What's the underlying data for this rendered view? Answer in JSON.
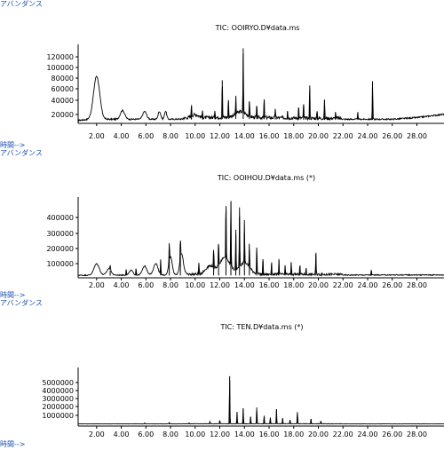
{
  "chart_data": [
    {
      "type": "line",
      "ylabel": "アバンダンス",
      "xlabel": "時間-->",
      "title": "TIC: OOIRYO.D¥data.ms",
      "y_ticks": [
        "120000",
        "100000",
        "80000",
        "60000",
        "40000",
        "20000"
      ],
      "ylim": [
        0,
        130000
      ],
      "xlim": [
        0.5,
        30.2
      ],
      "x_ticks": [
        "2.00",
        "4.00",
        "6.00",
        "8.00",
        "10.00",
        "12.00",
        "14.00",
        "16.00",
        "18.00",
        "20.00",
        "22.00",
        "24.00",
        "26.00",
        "28.00"
      ],
      "baseline": [
        [
          0.5,
          1000
        ],
        [
          1.5,
          3000
        ],
        [
          8,
          3000
        ],
        [
          13,
          5000
        ],
        [
          20,
          3000
        ],
        [
          26,
          3000
        ],
        [
          28,
          6000
        ],
        [
          30.2,
          12000
        ]
      ],
      "broad": [
        [
          2.0,
          78000,
          0.35
        ],
        [
          4.1,
          16000,
          0.25
        ],
        [
          5.9,
          14000,
          0.22
        ],
        [
          7.1,
          14000,
          0.15
        ],
        [
          7.6,
          15000,
          0.12
        ],
        [
          13.7,
          10000,
          0.6
        ],
        [
          10.0,
          6000,
          0.4
        ]
      ],
      "peaks": [
        [
          9.7,
          22000
        ],
        [
          10.6,
          12000
        ],
        [
          11.6,
          15000
        ],
        [
          12.2,
          70000
        ],
        [
          12.7,
          34000
        ],
        [
          13.3,
          30000
        ],
        [
          13.9,
          118000
        ],
        [
          14.4,
          30000
        ],
        [
          15.0,
          22000
        ],
        [
          15.6,
          36000
        ],
        [
          16.5,
          18000
        ],
        [
          17.5,
          15000
        ],
        [
          18.4,
          22000
        ],
        [
          18.8,
          28000
        ],
        [
          19.3,
          62000
        ],
        [
          19.9,
          15000
        ],
        [
          20.5,
          36000
        ],
        [
          21.4,
          12000
        ],
        [
          23.2,
          14000
        ],
        [
          24.4,
          70000
        ]
      ],
      "noise": 5000
    },
    {
      "type": "line",
      "ylabel": "アバンダンス",
      "xlabel": "時間-->",
      "title": "TIC: OOIHOU.D¥data.ms (*)",
      "y_ticks": [
        "400000",
        "300000",
        "200000",
        "100000"
      ],
      "ylim": [
        0,
        450000
      ],
      "xlim": [
        0.5,
        30.2
      ],
      "x_ticks": [
        "2.00",
        "4.00",
        "6.00",
        "8.00",
        "10.00",
        "12.00",
        "14.00",
        "16.00",
        "18.00",
        "20.00",
        "22.00",
        "24.00",
        "26.00",
        "28.00"
      ],
      "baseline": [
        [
          0.5,
          2000
        ],
        [
          10,
          4000
        ],
        [
          20,
          3000
        ],
        [
          30.2,
          4000
        ]
      ],
      "broad": [
        [
          2.0,
          70000,
          0.3
        ],
        [
          3.0,
          40000,
          0.25
        ],
        [
          4.8,
          30000,
          0.2
        ],
        [
          5.9,
          55000,
          0.25
        ],
        [
          6.8,
          70000,
          0.25
        ],
        [
          8.0,
          110000,
          0.2
        ],
        [
          8.9,
          130000,
          0.2
        ],
        [
          11.2,
          50000,
          0.5
        ],
        [
          12.4,
          100000,
          0.6
        ],
        [
          14.0,
          70000,
          0.6
        ]
      ],
      "peaks": [
        [
          3.1,
          30000
        ],
        [
          4.4,
          38000
        ],
        [
          5.2,
          42000
        ],
        [
          7.2,
          88000
        ],
        [
          7.9,
          120000
        ],
        [
          8.8,
          130000
        ],
        [
          10.3,
          70000
        ],
        [
          11.5,
          110000
        ],
        [
          11.9,
          160000
        ],
        [
          12.5,
          380000
        ],
        [
          12.9,
          460000
        ],
        [
          13.3,
          250000
        ],
        [
          13.6,
          360000
        ],
        [
          14.0,
          260000
        ],
        [
          14.4,
          150000
        ],
        [
          15.0,
          170000
        ],
        [
          15.5,
          100000
        ],
        [
          16.2,
          70000
        ],
        [
          16.8,
          90000
        ],
        [
          17.3,
          50000
        ],
        [
          17.8,
          75000
        ],
        [
          18.5,
          60000
        ],
        [
          19.0,
          40000
        ],
        [
          19.8,
          130000
        ],
        [
          24.3,
          30000
        ]
      ],
      "noise": 12000
    },
    {
      "type": "line",
      "ylabel": "",
      "xlabel": "時間-->",
      "title": "TIC: TEN.D¥data.ms (*)",
      "y_ticks": [
        "5000000",
        "4000000",
        "3000000",
        "2000000",
        "1000000"
      ],
      "ylim": [
        0,
        5600000
      ],
      "xlim": [
        0.5,
        30.2
      ],
      "x_ticks": [
        "2.00",
        "4.00",
        "6.00",
        "8.00",
        "10.00",
        "12.00",
        "14.00",
        "16.00",
        "18.00",
        "20.00",
        "22.00",
        "24.00",
        "26.00",
        "28.00"
      ],
      "baseline": [
        [
          0.5,
          30000
        ],
        [
          30.2,
          30000
        ]
      ],
      "broad": [],
      "peaks": [
        [
          5.9,
          120000
        ],
        [
          7.9,
          150000
        ],
        [
          9.5,
          120000
        ],
        [
          11.2,
          250000
        ],
        [
          12.0,
          380000
        ],
        [
          12.8,
          5200000
        ],
        [
          13.4,
          1300000
        ],
        [
          13.9,
          1700000
        ],
        [
          14.5,
          800000
        ],
        [
          15.0,
          1800000
        ],
        [
          15.6,
          900000
        ],
        [
          16.1,
          700000
        ],
        [
          16.6,
          1600000
        ],
        [
          17.1,
          600000
        ],
        [
          17.7,
          450000
        ],
        [
          18.3,
          1300000
        ],
        [
          19.4,
          550000
        ],
        [
          20.2,
          300000
        ]
      ],
      "noise": 40000
    }
  ]
}
